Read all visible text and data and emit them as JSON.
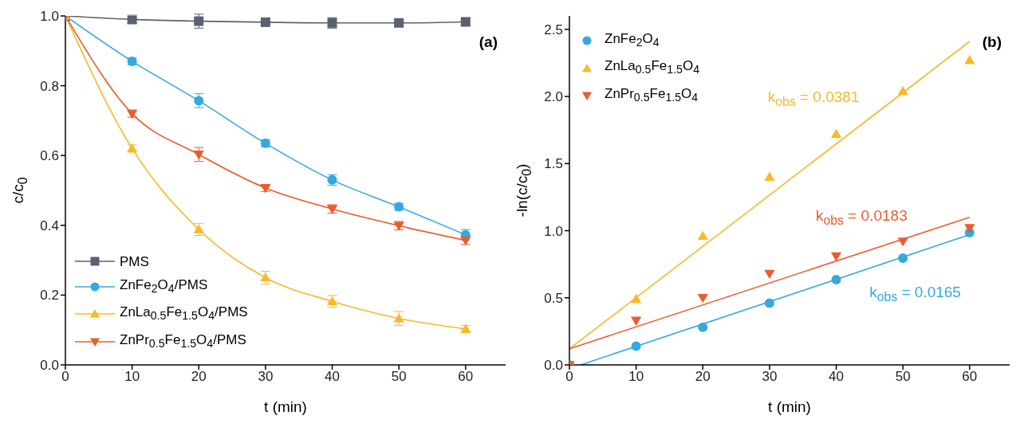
{
  "chart_data": [
    {
      "type": "line",
      "xlabel": "t (min)",
      "ylabel": "c/c$_{0}$",
      "annotations": [
        "(a)"
      ],
      "x": [
        0,
        10,
        20,
        30,
        40,
        50,
        60
      ],
      "xlim": [
        0,
        66
      ],
      "xticks": [
        0,
        10,
        20,
        30,
        40,
        50,
        60
      ],
      "ylim": [
        0,
        1
      ],
      "yticks": [
        {
          "value": 0,
          "label": "0.0"
        },
        0.2,
        0.4,
        0.6,
        0.8,
        {
          "value": 1,
          "label": "1.0"
        }
      ],
      "grid": false,
      "legend": "bottom left",
      "line_style": "solid",
      "series": [
        {
          "name": "PMS",
          "color": "#5a6170",
          "marker": "square",
          "values": [
            1,
            0.99,
            0.985,
            0.982,
            0.98,
            0.98,
            0.983
          ],
          "errors": [
            null,
            0.012,
            0.02,
            0.01,
            0.015,
            0.01,
            0.01
          ]
        },
        {
          "name": "ZnFe$_{2}$O$_{4}$/PMS",
          "color": "#35a8e0",
          "marker": "circle",
          "values": [
            1,
            0.87,
            0.757,
            0.635,
            0.53,
            0.453,
            0.373
          ],
          "errors": [
            null,
            0.01,
            0.02,
            0.01,
            0.015,
            0.01,
            0.015
          ]
        },
        {
          "name": "ZnLa$_{0.5}$Fe$_{1.5}$O$_{4}$/PMS",
          "color": "#f9b928",
          "marker": "triangle",
          "values": [
            1,
            0.62,
            0.388,
            0.25,
            0.182,
            0.133,
            0.103
          ],
          "errors": [
            null,
            0.01,
            0.017,
            0.018,
            0.017,
            0.02,
            0.01
          ]
        },
        {
          "name": "ZnPr$_{0.5}$Fe$_{1.5}$O$_{4}$/PMS",
          "color": "#ec5b2b",
          "marker": "triangle-down",
          "values": [
            1,
            0.72,
            0.603,
            0.507,
            0.447,
            0.399,
            0.357
          ],
          "errors": [
            null,
            0.01,
            0.02,
            0.01,
            0.012,
            0.012,
            0.012
          ]
        }
      ]
    },
    {
      "type": "scatter",
      "xlabel": "t (min)",
      "ylabel": "-ln(c/c$_{0}$)",
      "annotations": [
        "(b)",
        "k$_{obs}$ = 0.0165",
        "k$_{obs}$ = 0.0381",
        "k$_{obs}$ = 0.0183"
      ],
      "x": [
        0,
        10,
        20,
        30,
        40,
        50,
        60
      ],
      "xlim": [
        0,
        66
      ],
      "xticks": [
        0,
        10,
        20,
        30,
        40,
        50,
        60
      ],
      "ylim": [
        0,
        2.6
      ],
      "yticks": [
        {
          "value": 0,
          "label": "0.0"
        },
        0.5,
        {
          "value": 1,
          "label": "1.0"
        },
        1.5,
        {
          "value": 2,
          "label": "2.0"
        },
        2.5
      ],
      "grid": false,
      "legend": "top left",
      "series": [
        {
          "name": "ZnFe$_{2}$O$_{4}$",
          "color": "#35a8e0",
          "marker": "circle",
          "values": [
            0,
            0.14,
            0.28,
            0.46,
            0.635,
            0.795,
            0.985
          ]
        },
        {
          "name": "ZnLa$_{0.5}$Fe$_{1.5}$O$_{4}$",
          "color": "#f9b928",
          "marker": "triangle",
          "values": [
            null,
            0.49,
            0.96,
            1.4,
            1.72,
            2.04,
            2.27
          ]
        },
        {
          "name": "ZnPr$_{0.5}$Fe$_{1.5}$O$_{4}$",
          "color": "#ec5b2b",
          "marker": "triangle-down",
          "values": [
            0,
            0.33,
            0.5,
            0.68,
            0.81,
            0.92,
            1.02
          ]
        },
        {
          "type": "line",
          "color": "#35a8e0",
          "x": [
            1.7,
            60
          ],
          "values": [
            0,
            0.97
          ]
        },
        {
          "type": "line",
          "color": "#f9b928",
          "x": [
            0,
            60
          ],
          "values": [
            0.12,
            2.41
          ]
        },
        {
          "type": "line",
          "color": "#ec5b2b",
          "x": [
            0,
            60
          ],
          "values": [
            0.12,
            1.1
          ]
        }
      ]
    }
  ]
}
